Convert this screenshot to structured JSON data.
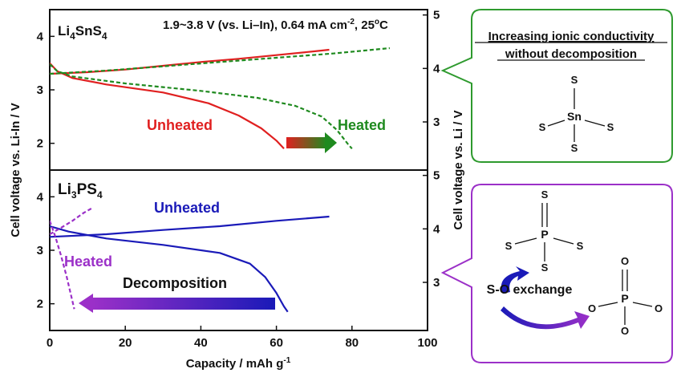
{
  "colors": {
    "unheated_sn": "#e02020",
    "heated_sn": "#1f8a1f",
    "li3ps4": "#1a1ab8",
    "heated_ps": "#9b30c8",
    "green_box": "#2e9a2e",
    "purple_box": "#9b30c8"
  },
  "chart_data": [
    {
      "type": "line",
      "panel": "top",
      "material": "Li4SnS4",
      "conditions": "1.9~3.8 V (vs. Li–In), 0.64 mA cm-2, 25°C",
      "left_ylim": [
        1.5,
        4.5
      ],
      "right_ylim": [
        2.1,
        5.1
      ],
      "xlim": [
        0,
        100
      ],
      "left_yticks": [
        "2",
        "3",
        "4"
      ],
      "right_yticks": [
        "3",
        "4",
        "5"
      ],
      "series": [
        {
          "name": "Unheated",
          "style": "solid",
          "color": "#e02020",
          "charge": [
            [
              0,
              3.3
            ],
            [
              10,
              3.33
            ],
            [
              20,
              3.38
            ],
            [
              30,
              3.45
            ],
            [
              40,
              3.52
            ],
            [
              50,
              3.58
            ],
            [
              60,
              3.65
            ],
            [
              70,
              3.72
            ],
            [
              74,
              3.75
            ]
          ],
          "discharge": [
            [
              0,
              3.5
            ],
            [
              2,
              3.35
            ],
            [
              6,
              3.22
            ],
            [
              15,
              3.1
            ],
            [
              30,
              2.95
            ],
            [
              42,
              2.75
            ],
            [
              50,
              2.52
            ],
            [
              56,
              2.28
            ],
            [
              60,
              2.05
            ],
            [
              62,
              1.9
            ]
          ]
        },
        {
          "name": "Heated",
          "style": "dashed",
          "color": "#1f8a1f",
          "charge": [
            [
              0,
              3.3
            ],
            [
              15,
              3.36
            ],
            [
              30,
              3.44
            ],
            [
              45,
              3.52
            ],
            [
              60,
              3.6
            ],
            [
              75,
              3.68
            ],
            [
              90,
              3.78
            ]
          ],
          "discharge": [
            [
              0,
              3.48
            ],
            [
              2,
              3.35
            ],
            [
              6,
              3.25
            ],
            [
              20,
              3.12
            ],
            [
              40,
              2.98
            ],
            [
              55,
              2.85
            ],
            [
              65,
              2.7
            ],
            [
              72,
              2.5
            ],
            [
              76,
              2.25
            ],
            [
              79,
              1.98
            ],
            [
              80,
              1.9
            ]
          ]
        }
      ],
      "annotations": [
        "Unheated",
        "Heated"
      ]
    },
    {
      "type": "line",
      "panel": "bottom",
      "material": "Li3PS4",
      "left_ylim": [
        1.5,
        4.5
      ],
      "right_ylim": [
        2.1,
        5.1
      ],
      "xlim": [
        0,
        100
      ],
      "xticks": [
        "0",
        "20",
        "40",
        "60",
        "80",
        "100"
      ],
      "left_yticks": [
        "2",
        "3",
        "4"
      ],
      "right_yticks": [
        "3",
        "4",
        "5"
      ],
      "series": [
        {
          "name": "Unheated",
          "style": "solid",
          "color": "#1a1ab8",
          "charge": [
            [
              0,
              3.25
            ],
            [
              15,
              3.3
            ],
            [
              30,
              3.38
            ],
            [
              45,
              3.45
            ],
            [
              60,
              3.55
            ],
            [
              74,
              3.63
            ]
          ],
          "discharge": [
            [
              0,
              3.45
            ],
            [
              5,
              3.35
            ],
            [
              15,
              3.22
            ],
            [
              30,
              3.1
            ],
            [
              45,
              2.95
            ],
            [
              53,
              2.75
            ],
            [
              57,
              2.5
            ],
            [
              60,
              2.2
            ],
            [
              62,
              1.95
            ],
            [
              63,
              1.85
            ]
          ]
        },
        {
          "name": "Heated",
          "style": "dashed",
          "color": "#9b30c8",
          "charge": [
            [
              0,
              3.3
            ],
            [
              3,
              3.42
            ],
            [
              6,
              3.55
            ],
            [
              9,
              3.7
            ],
            [
              11,
              3.78
            ]
          ],
          "discharge": [
            [
              0,
              3.55
            ],
            [
              1.5,
              3.25
            ],
            [
              3,
              2.9
            ],
            [
              4.5,
              2.5
            ],
            [
              5.5,
              2.2
            ],
            [
              6.5,
              1.9
            ]
          ]
        }
      ],
      "annotations": [
        "Unheated",
        "Heated",
        "Decomposition"
      ]
    }
  ],
  "axes": {
    "xlabel": "Capacity / mAh g-1",
    "ylabel_left": "Cell voltage vs. Li-In / V",
    "ylabel_right": "Cell voltage vs. Li / V"
  },
  "top_panel": {
    "material_base": "Li",
    "material_sub1": "4",
    "material_mid": "SnS",
    "material_sub2": "4",
    "conditions_main": "1.9~3.8 V (vs. Li–In), 0.64 mA cm",
    "conditions_sup": "-2",
    "conditions_end": ", 25",
    "conditions_deg": "o",
    "conditions_unit": "C",
    "label_unheated": "Unheated",
    "label_heated": "Heated"
  },
  "bottom_panel": {
    "material_base": "Li",
    "material_sub1": "3",
    "material_mid": "PS",
    "material_sub2": "4",
    "label_unheated": "Unheated",
    "label_heated": "Heated",
    "label_decomposition": "Decomposition"
  },
  "x_label_main": "Capacity / mAh g",
  "x_label_sup": "-1",
  "green_box": {
    "title_line1": "Increasing ionic conductivity",
    "title_line2": "without decomposition",
    "center_atom": "Sn",
    "ligand": "S"
  },
  "purple_box": {
    "center_atom_1": "P",
    "ligand_1": "S",
    "exchange_label": "S-O exchange",
    "center_atom_2": "P",
    "ligand_2": "O"
  }
}
